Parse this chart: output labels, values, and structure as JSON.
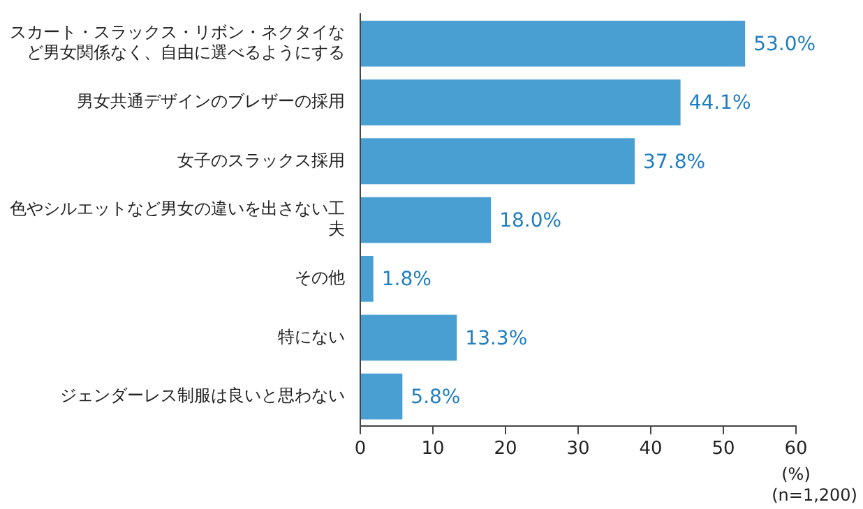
{
  "chart_data": {
    "type": "bar",
    "orientation": "horizontal",
    "categories": [
      "スカート・スラックス・リボン・ネクタイなど男女関係なく、自由に選べるようにする",
      "男女共通デザインのブレザーの採用",
      "女子のスラックス採用",
      "色やシルエットなど男女の違いを出さない工夫",
      "その他",
      "特にない",
      "ジェンダーレス制服は良いと思わない"
    ],
    "values": [
      53.0,
      44.1,
      37.8,
      18.0,
      1.8,
      13.3,
      5.8
    ],
    "value_labels": [
      "53.0%",
      "44.1%",
      "37.8%",
      "18.0%",
      "1.8%",
      "13.3%",
      "5.8%"
    ],
    "color": "#4a9fd2",
    "xlim": [
      0,
      60
    ],
    "xticks": [
      0,
      10,
      20,
      30,
      40,
      50,
      60
    ],
    "xlabel": "(%)",
    "annotations": [
      "(n=1,200)"
    ],
    "grid": false,
    "legend": false
  }
}
